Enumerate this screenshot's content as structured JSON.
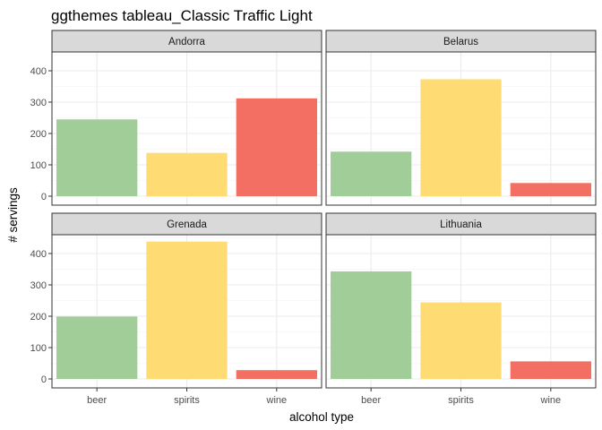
{
  "chart_data": {
    "type": "bar",
    "title": "ggthemes tableau_Classic Traffic Light",
    "xlabel": "alcohol type",
    "ylabel": "# servings",
    "categories": [
      "beer",
      "spirits",
      "wine"
    ],
    "ylim": [
      0,
      460
    ],
    "yticks": [
      "0",
      "100",
      "200",
      "300",
      "400"
    ],
    "grid": true,
    "legend": "none",
    "colors": [
      "#a0cd98",
      "#ffdc73",
      "#f36e63"
    ],
    "facets": [
      {
        "name": "Andorra",
        "values": [
          245,
          138,
          312
        ]
      },
      {
        "name": "Belarus",
        "values": [
          142,
          373,
          42
        ]
      },
      {
        "name": "Grenada",
        "values": [
          199,
          438,
          28
        ]
      },
      {
        "name": "Lithuania",
        "values": [
          343,
          244,
          56
        ]
      }
    ]
  }
}
